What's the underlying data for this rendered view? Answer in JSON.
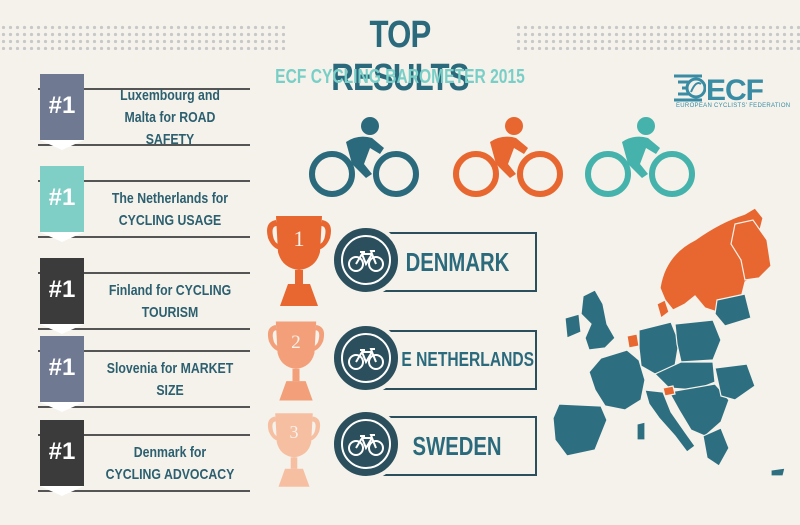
{
  "header": {
    "title": "TOP RESULTS",
    "subtitle": "ECF CYCLING BAROMETER 2015"
  },
  "logo": {
    "text": "ECF",
    "subtext": "EUROPEAN CYCLISTS' FEDERATION"
  },
  "categories": [
    {
      "rank": "#1",
      "text": "Luxembourg and Malta for ROAD SAFETY",
      "color": "#6f7a92"
    },
    {
      "rank": "#1",
      "text": "The Netherlands for CYCLING USAGE",
      "color": "#7fcfc7"
    },
    {
      "rank": "#1",
      "text": "Finland for CYCLING TOURISM",
      "color": "#3b3b3b"
    },
    {
      "rank": "#1",
      "text": "Slovenia for MARKET SIZE",
      "color": "#6f7a92"
    },
    {
      "rank": "#1",
      "text": "Denmark for CYCLING ADVOCACY",
      "color": "#3b3b3b"
    }
  ],
  "winners": [
    {
      "place": "1",
      "country": "DENMARK",
      "trophy_color": "#e8662f"
    },
    {
      "place": "2",
      "country": "THE NETHERLANDS",
      "trophy_color": "#f3a07a"
    },
    {
      "place": "3",
      "country": "SWEDEN",
      "trophy_color": "#f6bfa1"
    }
  ],
  "colors": {
    "dark_teal": "#2b4f5c",
    "teal": "#2b6a7c",
    "mint": "#7fcfc7",
    "orange": "#e8662f",
    "map_blue": "#2d6f80"
  },
  "cyclist_icons": [
    {
      "name": "cyclist-icon",
      "color": "#2b6a7c"
    },
    {
      "name": "cyclist-icon",
      "color": "#e8662f"
    },
    {
      "name": "cyclist-icon",
      "color": "#45b2ac"
    }
  ]
}
